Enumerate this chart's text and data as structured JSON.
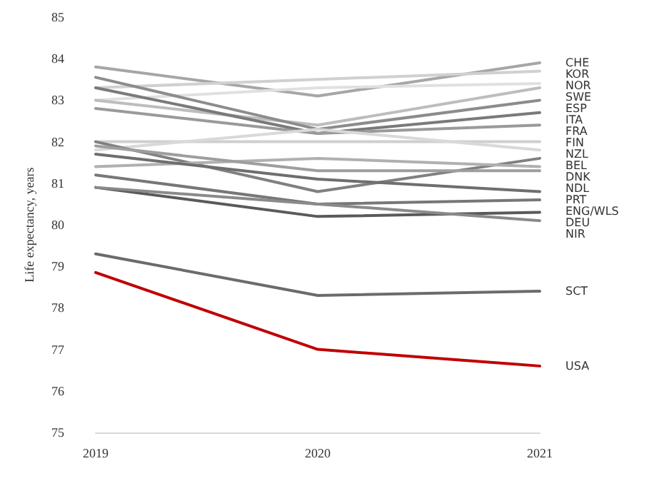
{
  "chart_data": {
    "type": "line",
    "ylabel": "Life expectancy, years",
    "categories": [
      "2019",
      "2020",
      "2021"
    ],
    "ylim": [
      75,
      85
    ],
    "yticks": [
      75,
      76,
      77,
      78,
      79,
      80,
      81,
      82,
      83,
      84,
      85
    ],
    "grid": false,
    "legend": false,
    "marker": "none",
    "line_style": "solid",
    "series": [
      {
        "name": "CHE",
        "color": "#a6a6a6",
        "values": [
          83.8,
          83.1,
          83.9
        ]
      },
      {
        "name": "KOR",
        "color": "#d0d0d0",
        "values": [
          83.3,
          83.5,
          83.7
        ]
      },
      {
        "name": "NOR",
        "color": "#e0e0e0",
        "values": [
          83.0,
          83.3,
          83.4
        ]
      },
      {
        "name": "SWE",
        "color": "#bdbdbd",
        "values": [
          83.0,
          82.4,
          83.3
        ]
      },
      {
        "name": "ESP",
        "color": "#8c8c8c",
        "values": [
          83.55,
          82.3,
          83.0
        ]
      },
      {
        "name": "ITA",
        "color": "#7a7a7a",
        "values": [
          83.3,
          82.2,
          82.7
        ]
      },
      {
        "name": "FRA",
        "color": "#9a9a9a",
        "values": [
          82.8,
          82.2,
          82.4
        ]
      },
      {
        "name": "FIN",
        "color": "#cfcfcf",
        "values": [
          82.0,
          82.0,
          82.0
        ]
      },
      {
        "name": "NZL",
        "color": "#d9d9d9",
        "values": [
          81.8,
          82.3,
          81.8
        ]
      },
      {
        "name": "BEL",
        "color": "#808080",
        "values": [
          82.0,
          80.8,
          81.6
        ]
      },
      {
        "name": "DNK",
        "color": "#b0b0b0",
        "values": [
          81.4,
          81.6,
          81.4
        ]
      },
      {
        "name": "NDL",
        "color": "#9e9e9e",
        "values": [
          81.9,
          81.3,
          81.3
        ]
      },
      {
        "name": "PRT",
        "color": "#6e6e6e",
        "values": [
          81.7,
          81.1,
          80.8
        ]
      },
      {
        "name": "ENG/WLS",
        "color": "#777777",
        "values": [
          81.2,
          80.5,
          80.6
        ]
      },
      {
        "name": "DEU",
        "color": "#5a5a5a",
        "values": [
          80.9,
          80.2,
          80.3
        ]
      },
      {
        "name": "NIR",
        "color": "#8a8a8a",
        "values": [
          80.9,
          80.5,
          80.1
        ]
      },
      {
        "name": "SCT",
        "color": "#6b6b6b",
        "values": [
          79.3,
          78.3,
          78.4
        ]
      },
      {
        "name": "USA",
        "color": "#c00000",
        "values": [
          78.85,
          77.0,
          76.6
        ]
      }
    ]
  }
}
